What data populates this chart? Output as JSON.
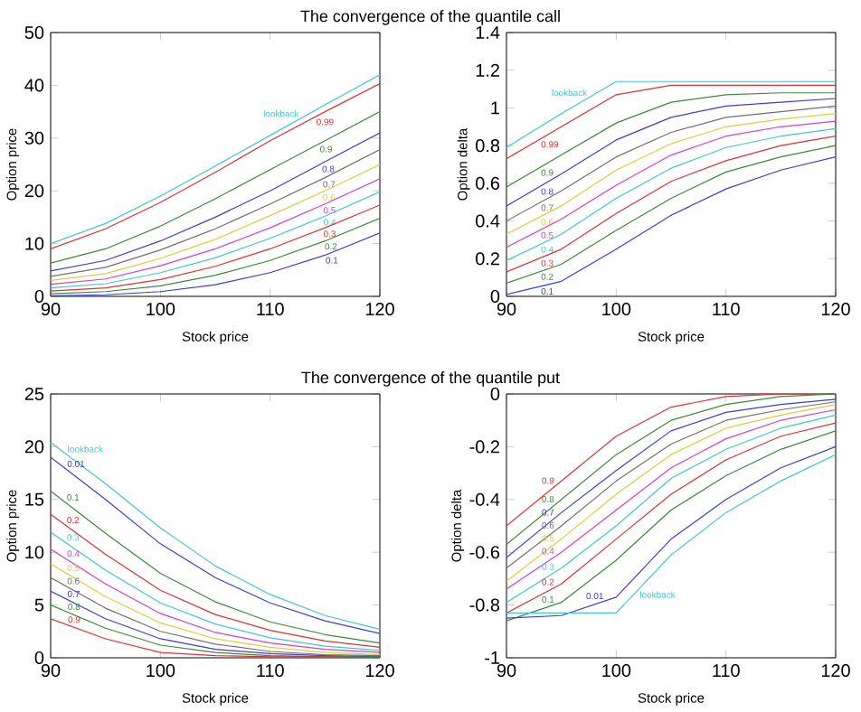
{
  "chart_data": [
    {
      "type": "line",
      "title": "The convergence of the quantile call",
      "xlabel": "Stock price",
      "ylabel": "Option price",
      "x": [
        90,
        95,
        100,
        105,
        110,
        115,
        120
      ],
      "xlim": [
        90,
        120
      ],
      "xticks": [
        90,
        100,
        110,
        120
      ],
      "ylim": [
        0,
        50
      ],
      "yticks": [
        0,
        10,
        20,
        30,
        40,
        50
      ],
      "series": [
        {
          "name": "lookback",
          "color": "#40c8c8",
          "values": [
            10,
            13.8,
            19,
            24.7,
            30.5,
            36.3,
            42
          ]
        },
        {
          "name": "0.99",
          "color": "#e03030",
          "values": [
            9,
            12.8,
            17.8,
            23.5,
            29.5,
            35,
            40.3
          ]
        },
        {
          "name": "0.9",
          "color": "#3a8a3a",
          "values": [
            6.3,
            9,
            13.3,
            18.5,
            24,
            29.5,
            35
          ]
        },
        {
          "name": "0.8",
          "color": "#3c3cd8",
          "values": [
            4.8,
            6.8,
            10.5,
            15,
            20,
            25.5,
            31
          ]
        },
        {
          "name": "0.7",
          "color": "#707070",
          "values": [
            3.8,
            5.5,
            8.8,
            12.8,
            17.5,
            22.5,
            27.8
          ]
        },
        {
          "name": "0.6",
          "color": "#d8d040",
          "values": [
            3,
            4.3,
            7.2,
            10.8,
            15.3,
            20,
            25
          ]
        },
        {
          "name": "0.5",
          "color": "#d040d0",
          "values": [
            2.3,
            3.3,
            5.8,
            9,
            13,
            17.5,
            22.3
          ]
        },
        {
          "name": "0.4",
          "color": "#40c8c8",
          "values": [
            1.6,
            2.4,
            4.5,
            7.3,
            11,
            15.2,
            19.8
          ]
        },
        {
          "name": "0.3",
          "color": "#e03030",
          "values": [
            1,
            1.6,
            3.2,
            5.7,
            9,
            13,
            17.3
          ]
        },
        {
          "name": "0.2",
          "color": "#3a8a3a",
          "values": [
            0.5,
            0.9,
            2,
            4,
            6.8,
            10.5,
            14.8
          ]
        },
        {
          "name": "0.1",
          "color": "#3c3cd8",
          "values": [
            0.1,
            0.3,
            0.9,
            2.2,
            4.5,
            7.8,
            12
          ]
        }
      ]
    },
    {
      "type": "line",
      "xlabel": "Stock price",
      "ylabel": "Option delta",
      "x": [
        90,
        95,
        100,
        105,
        110,
        115,
        120
      ],
      "xlim": [
        90,
        120
      ],
      "xticks": [
        90,
        100,
        110,
        120
      ],
      "ylim": [
        0,
        1.4
      ],
      "yticks": [
        0,
        0.2,
        0.4,
        0.6,
        0.8,
        1,
        1.2,
        1.4
      ],
      "series": [
        {
          "name": "lookback",
          "color": "#40c8c8",
          "values": [
            0.79,
            0.97,
            1.14,
            1.14,
            1.14,
            1.14,
            1.14
          ]
        },
        {
          "name": "0.99",
          "color": "#e03030",
          "values": [
            0.73,
            0.9,
            1.07,
            1.12,
            1.12,
            1.12,
            1.12
          ]
        },
        {
          "name": "0.9",
          "color": "#3a8a3a",
          "values": [
            0.58,
            0.75,
            0.92,
            1.03,
            1.07,
            1.08,
            1.08
          ]
        },
        {
          "name": "0.8",
          "color": "#3c3cd8",
          "values": [
            0.48,
            0.65,
            0.83,
            0.95,
            1.01,
            1.03,
            1.05
          ]
        },
        {
          "name": "0.7",
          "color": "#707070",
          "values": [
            0.4,
            0.56,
            0.74,
            0.87,
            0.95,
            0.98,
            1.01
          ]
        },
        {
          "name": "0.6",
          "color": "#d8d040",
          "values": [
            0.33,
            0.48,
            0.67,
            0.81,
            0.9,
            0.94,
            0.97
          ]
        },
        {
          "name": "0.5",
          "color": "#d040d0",
          "values": [
            0.26,
            0.41,
            0.59,
            0.75,
            0.85,
            0.9,
            0.93
          ]
        },
        {
          "name": "0.4",
          "color": "#40c8c8",
          "values": [
            0.19,
            0.33,
            0.52,
            0.68,
            0.79,
            0.85,
            0.89
          ]
        },
        {
          "name": "0.3",
          "color": "#e03030",
          "values": [
            0.13,
            0.25,
            0.44,
            0.61,
            0.72,
            0.8,
            0.85
          ]
        },
        {
          "name": "0.2",
          "color": "#3a8a3a",
          "values": [
            0.07,
            0.17,
            0.35,
            0.52,
            0.66,
            0.74,
            0.8
          ]
        },
        {
          "name": "0.1",
          "color": "#3c3cd8",
          "values": [
            0.01,
            0.08,
            0.25,
            0.43,
            0.57,
            0.67,
            0.74
          ]
        }
      ]
    },
    {
      "type": "line",
      "title": "The convergence of the quantile put",
      "xlabel": "Stock price",
      "ylabel": "Option price",
      "x": [
        90,
        95,
        100,
        105,
        110,
        115,
        120
      ],
      "xlim": [
        90,
        120
      ],
      "xticks": [
        90,
        100,
        110,
        120
      ],
      "ylim": [
        0,
        25
      ],
      "yticks": [
        0,
        5,
        10,
        15,
        20,
        25
      ],
      "series": [
        {
          "name": "lookback",
          "color": "#40c8c8",
          "values": [
            20.4,
            16.5,
            12.3,
            8.7,
            6,
            4,
            2.7
          ]
        },
        {
          "name": "0.01",
          "color": "#3c3cd8",
          "values": [
            19,
            15,
            10.8,
            7.6,
            5.2,
            3.5,
            2.3
          ]
        },
        {
          "name": "0.1",
          "color": "#3a8a3a",
          "values": [
            15.8,
            11.8,
            8,
            5.3,
            3.4,
            2.2,
            1.4
          ]
        },
        {
          "name": "0.2",
          "color": "#e03030",
          "values": [
            13.6,
            9.8,
            6.4,
            4.1,
            2.6,
            1.6,
            1
          ]
        },
        {
          "name": "0.3",
          "color": "#40c8c8",
          "values": [
            11.9,
            8.3,
            5.2,
            3.2,
            1.9,
            1.1,
            0.7
          ]
        },
        {
          "name": "0.4",
          "color": "#d040d0",
          "values": [
            10.3,
            7,
            4.2,
            2.4,
            1.4,
            0.8,
            0.5
          ]
        },
        {
          "name": "0.5",
          "color": "#d8d040",
          "values": [
            8.9,
            5.8,
            3.3,
            1.8,
            1,
            0.5,
            0.3
          ]
        },
        {
          "name": "0.6",
          "color": "#707070",
          "values": [
            7.6,
            4.7,
            2.5,
            1.3,
            0.6,
            0.3,
            0.2
          ]
        },
        {
          "name": "0.7",
          "color": "#3c3cd8",
          "values": [
            6.3,
            3.7,
            1.8,
            0.8,
            0.4,
            0.2,
            0.1
          ]
        },
        {
          "name": "0.8",
          "color": "#3a8a3a",
          "values": [
            5,
            2.8,
            1.2,
            0.5,
            0.2,
            0.1,
            0.1
          ]
        },
        {
          "name": "0.9",
          "color": "#e03030",
          "values": [
            3.7,
            1.8,
            0.5,
            0.2,
            0.1,
            0.1,
            0
          ]
        }
      ]
    },
    {
      "type": "line",
      "xlabel": "Stock price",
      "ylabel": "Option delta",
      "x": [
        90,
        95,
        100,
        105,
        110,
        115,
        120
      ],
      "xlim": [
        90,
        120
      ],
      "xticks": [
        90,
        100,
        110,
        120
      ],
      "ylim": [
        -1,
        0
      ],
      "yticks": [
        -1,
        -0.8,
        -0.6,
        -0.4,
        -0.2,
        0
      ],
      "series": [
        {
          "name": "0.9",
          "color": "#e03030",
          "values": [
            -0.5,
            -0.33,
            -0.16,
            -0.05,
            -0.01,
            0,
            0
          ]
        },
        {
          "name": "0.8",
          "color": "#3a8a3a",
          "values": [
            -0.57,
            -0.4,
            -0.23,
            -0.1,
            -0.04,
            -0.01,
            0
          ]
        },
        {
          "name": "0.7",
          "color": "#3c3cd8",
          "values": [
            -0.62,
            -0.45,
            -0.29,
            -0.14,
            -0.07,
            -0.04,
            -0.02
          ]
        },
        {
          "name": "0.6",
          "color": "#707070",
          "values": [
            -0.66,
            -0.5,
            -0.33,
            -0.19,
            -0.1,
            -0.06,
            -0.03
          ]
        },
        {
          "name": "0.5",
          "color": "#d8d040",
          "values": [
            -0.71,
            -0.55,
            -0.38,
            -0.23,
            -0.13,
            -0.08,
            -0.04
          ]
        },
        {
          "name": "0.4",
          "color": "#d040d0",
          "values": [
            -0.74,
            -0.6,
            -0.44,
            -0.28,
            -0.17,
            -0.1,
            -0.06
          ]
        },
        {
          "name": "0.3",
          "color": "#40c8c8",
          "values": [
            -0.79,
            -0.66,
            -0.5,
            -0.32,
            -0.21,
            -0.13,
            -0.08
          ]
        },
        {
          "name": "0.2",
          "color": "#e03030",
          "values": [
            -0.83,
            -0.72,
            -0.55,
            -0.38,
            -0.25,
            -0.16,
            -0.11
          ]
        },
        {
          "name": "0.1",
          "color": "#3a8a3a",
          "values": [
            -0.86,
            -0.79,
            -0.63,
            -0.44,
            -0.31,
            -0.21,
            -0.14
          ]
        },
        {
          "name": "0.01",
          "color": "#3c3cd8",
          "values": [
            -0.85,
            -0.84,
            -0.77,
            -0.55,
            -0.4,
            -0.28,
            -0.2
          ]
        },
        {
          "name": "lookback",
          "color": "#40c8c8",
          "values": [
            -0.83,
            -0.83,
            -0.83,
            -0.61,
            -0.45,
            -0.33,
            -0.23
          ]
        }
      ]
    }
  ]
}
